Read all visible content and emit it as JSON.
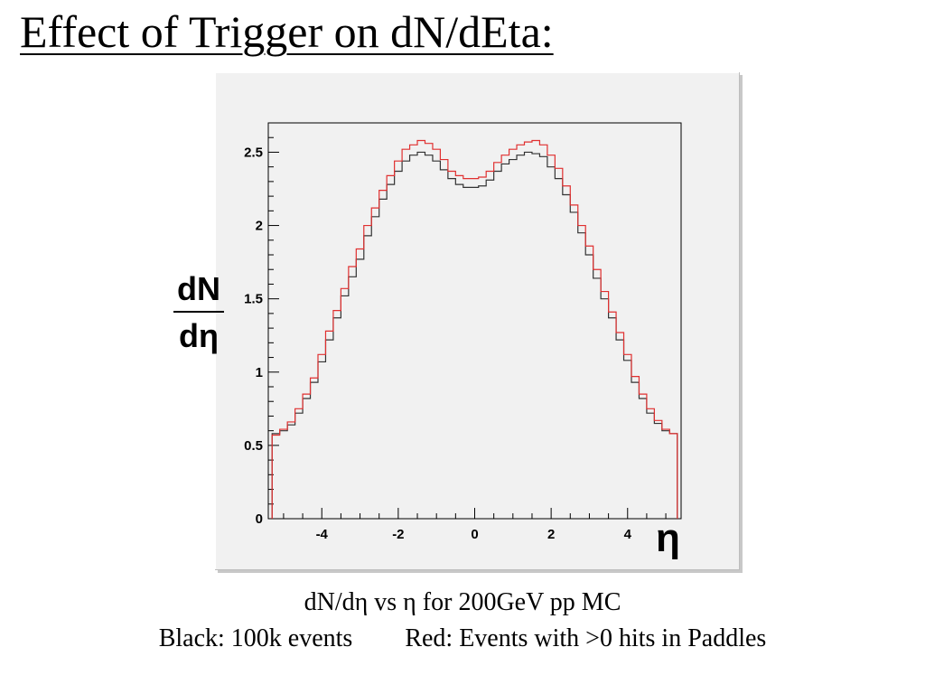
{
  "page": {
    "title": "Effect of Trigger on dN/dEta:",
    "caption_line1": "dN/dη vs η for 200GeV pp MC",
    "caption_black": "Black: 100k events",
    "caption_red": "Red: Events with >0 hits in Paddles"
  },
  "chart_data": {
    "type": "line",
    "title": "",
    "xlabel": "η",
    "ylabel_numerator": "dN",
    "ylabel_denominator": "dη",
    "xlim": [
      -5.4,
      5.4
    ],
    "ylim": [
      0,
      2.7
    ],
    "xticks": [
      -4,
      -2,
      0,
      2,
      4
    ],
    "xtick_labels": [
      "-4",
      "-2",
      "0",
      "2",
      "4"
    ],
    "yticks": [
      0,
      0.5,
      1,
      1.5,
      2,
      2.5
    ],
    "ytick_labels": [
      "0",
      "0.5",
      "1",
      "1.5",
      "2",
      "2.5"
    ],
    "grid": false,
    "x": [
      -5.2,
      -5.0,
      -4.8,
      -4.6,
      -4.4,
      -4.2,
      -4.0,
      -3.8,
      -3.6,
      -3.4,
      -3.2,
      -3.0,
      -2.8,
      -2.6,
      -2.4,
      -2.2,
      -2.0,
      -1.8,
      -1.6,
      -1.4,
      -1.2,
      -1.0,
      -0.8,
      -0.6,
      -0.4,
      -0.2,
      0.0,
      0.2,
      0.4,
      0.6,
      0.8,
      1.0,
      1.2,
      1.4,
      1.6,
      1.8,
      2.0,
      2.2,
      2.4,
      2.6,
      2.8,
      3.0,
      3.2,
      3.4,
      3.6,
      3.8,
      4.0,
      4.2,
      4.4,
      4.6,
      4.8,
      5.0,
      5.2
    ],
    "series": [
      {
        "color": "#333333",
        "values": [
          0.58,
          0.6,
          0.64,
          0.72,
          0.82,
          0.93,
          1.07,
          1.22,
          1.37,
          1.52,
          1.65,
          1.77,
          1.93,
          2.06,
          2.18,
          2.28,
          2.37,
          2.44,
          2.48,
          2.5,
          2.48,
          2.44,
          2.38,
          2.32,
          2.28,
          2.26,
          2.26,
          2.27,
          2.31,
          2.37,
          2.42,
          2.45,
          2.48,
          2.5,
          2.49,
          2.47,
          2.4,
          2.32,
          2.21,
          2.09,
          1.95,
          1.8,
          1.64,
          1.5,
          1.37,
          1.22,
          1.08,
          0.93,
          0.82,
          0.72,
          0.65,
          0.6,
          0.58
        ]
      },
      {
        "color": "#e03030",
        "values": [
          0.57,
          0.61,
          0.66,
          0.75,
          0.85,
          0.96,
          1.12,
          1.28,
          1.42,
          1.57,
          1.72,
          1.84,
          2.0,
          2.12,
          2.24,
          2.34,
          2.44,
          2.52,
          2.55,
          2.58,
          2.56,
          2.52,
          2.45,
          2.37,
          2.34,
          2.32,
          2.32,
          2.33,
          2.37,
          2.43,
          2.48,
          2.52,
          2.55,
          2.57,
          2.58,
          2.55,
          2.48,
          2.39,
          2.27,
          2.14,
          2.0,
          1.86,
          1.7,
          1.55,
          1.41,
          1.27,
          1.12,
          0.97,
          0.85,
          0.75,
          0.67,
          0.61,
          0.58
        ]
      }
    ]
  }
}
